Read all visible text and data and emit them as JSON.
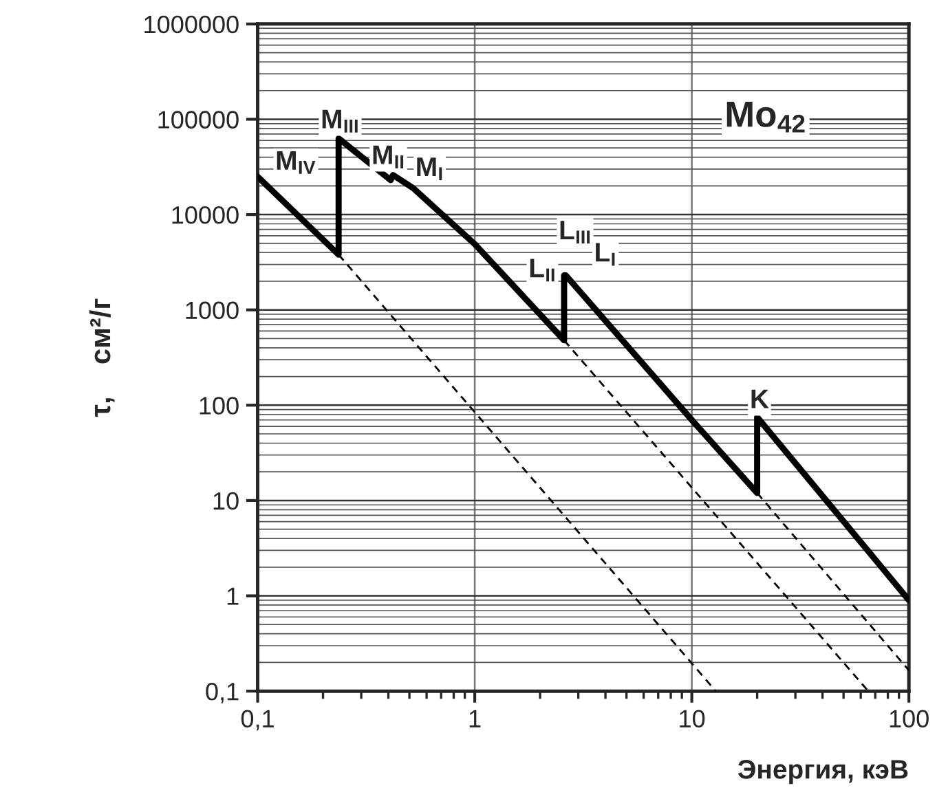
{
  "chart_data": {
    "type": "line",
    "xlabel": "Энергия, кэВ",
    "ylabel": "τ,    см²/г",
    "log": "xy",
    "grid": true,
    "xlim": [
      0.1,
      100
    ],
    "ylim": [
      0.1,
      1000000
    ],
    "xticks": [
      {
        "value": 0.1,
        "label": "0,1"
      },
      1,
      10,
      100
    ],
    "yticks": [
      {
        "value": 0.1,
        "label": "0,1"
      },
      1,
      10,
      100,
      1000,
      10000,
      100000,
      1000000
    ],
    "series": [
      {
        "color": "#000000",
        "line_style": "solid",
        "x": [
          0.1,
          0.236,
          0.236,
          0.41,
          0.42,
          0.52,
          1,
          2.58,
          2.58,
          2.63,
          10,
          20,
          20,
          100
        ],
        "values": [
          25000,
          3800,
          63000,
          23000,
          26000,
          19000,
          4900,
          480,
          2300,
          2300,
          70,
          12,
          75,
          0.9
        ]
      },
      {
        "color": "#000000",
        "line_style": "dashed",
        "x": [
          0.236,
          12.9
        ],
        "values": [
          3800,
          0.1
        ]
      },
      {
        "color": "#000000",
        "line_style": "dashed",
        "x": [
          2.58,
          65
        ],
        "values": [
          480,
          0.1
        ]
      },
      {
        "color": "#000000",
        "line_style": "dashed",
        "x": [
          20,
          100
        ],
        "values": [
          12,
          0.165
        ]
      }
    ],
    "annotations": [
      {
        "text": "M$_{IV}$",
        "x": 0.15,
        "y": 35000
      },
      {
        "text": "M$_{III}$",
        "x": 0.24,
        "y": 95000
      },
      {
        "text": "M$_{II}$",
        "x": 0.4,
        "y": 40000
      },
      {
        "text": "M$_{I}$",
        "x": 0.62,
        "y": 30000
      },
      {
        "text": "L$_{III}$",
        "x": 2.9,
        "y": 6500
      },
      {
        "text": "L$_{II}$",
        "x": 2.05,
        "y": 2600
      },
      {
        "text": "L$_{I}$",
        "x": 4.0,
        "y": 3800
      },
      {
        "text": "K",
        "x": 20.5,
        "y": 110
      },
      "Mo$_{42}$"
    ]
  }
}
